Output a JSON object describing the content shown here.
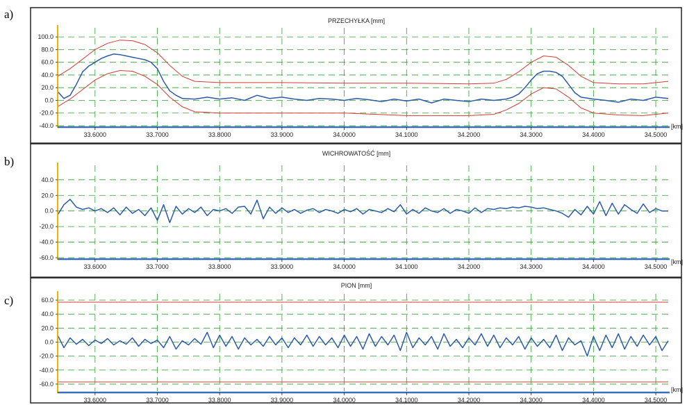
{
  "chart_data": [
    {
      "id": "a",
      "type": "line",
      "letter": "a)",
      "title": "PRZECHYŁKA [mm]",
      "xlabel": "[km]",
      "ylim": [
        -40,
        110
      ],
      "xlim": [
        33.54,
        34.52
      ],
      "y_ticks": [
        100,
        80,
        60,
        40,
        20,
        0,
        -20,
        -40
      ],
      "y_tick_labels": [
        "100.0",
        "80.0",
        "60.0",
        "40.0",
        "20.0",
        "0.0",
        "-20.0",
        "-40.0"
      ],
      "x_ticks": [
        33.6,
        33.7,
        33.8,
        33.9,
        34.0,
        34.1,
        34.2,
        34.3,
        34.4,
        34.5
      ],
      "x_tick_labels": [
        "33.6000",
        "33.7000",
        "33.8000",
        "33.9000",
        "34.0000",
        "34.1000",
        "34.2000",
        "34.3000",
        "34.4000",
        "34.5000"
      ],
      "grid": true,
      "colors": {
        "signal": "#2b5aa8",
        "limit": "#d23a32",
        "grid": "#2aa02a",
        "axis": "#e8b600",
        "baseline": "#3b6fb5"
      },
      "series": [
        {
          "role": "signal",
          "x": [
            33.54,
            33.55,
            33.56,
            33.57,
            33.58,
            33.59,
            33.6,
            33.61,
            33.62,
            33.63,
            33.64,
            33.65,
            33.66,
            33.67,
            33.68,
            33.69,
            33.7,
            33.71,
            33.72,
            33.73,
            33.74,
            33.76,
            33.78,
            33.8,
            33.82,
            33.84,
            33.86,
            33.88,
            33.9,
            33.92,
            33.94,
            33.96,
            33.98,
            34.0,
            34.02,
            34.04,
            34.06,
            34.08,
            34.1,
            34.12,
            34.14,
            34.16,
            34.18,
            34.2,
            34.22,
            34.24,
            34.26,
            34.27,
            34.28,
            34.29,
            34.3,
            34.31,
            34.32,
            34.33,
            34.34,
            34.35,
            34.36,
            34.37,
            34.38,
            34.4,
            34.42,
            34.44,
            34.46,
            34.48,
            34.5,
            34.52
          ],
          "y": [
            14,
            3,
            8,
            25,
            45,
            54,
            60,
            66,
            70,
            73,
            72,
            70,
            68,
            66,
            64,
            60,
            50,
            30,
            15,
            8,
            3,
            2,
            5,
            2,
            4,
            0,
            8,
            3,
            5,
            2,
            0,
            3,
            2,
            0,
            3,
            1,
            -2,
            2,
            -1,
            2,
            -4,
            2,
            0,
            -2,
            2,
            0,
            2,
            5,
            10,
            20,
            32,
            42,
            46,
            46,
            44,
            38,
            25,
            12,
            5,
            2,
            0,
            -3,
            2,
            0,
            5,
            3
          ]
        },
        {
          "role": "upper-limit",
          "x": [
            33.54,
            33.56,
            33.58,
            33.6,
            33.62,
            33.64,
            33.66,
            33.68,
            33.7,
            33.72,
            33.74,
            33.76,
            33.8,
            33.9,
            34.0,
            34.1,
            34.2,
            34.24,
            34.26,
            34.28,
            34.3,
            34.32,
            34.34,
            34.36,
            34.38,
            34.4,
            34.44,
            34.48,
            34.52
          ],
          "y": [
            38,
            50,
            65,
            80,
            90,
            95,
            94,
            88,
            75,
            55,
            38,
            30,
            28,
            28,
            27,
            27,
            26,
            27,
            33,
            45,
            60,
            70,
            68,
            55,
            38,
            28,
            26,
            26,
            30
          ]
        },
        {
          "role": "lower-limit",
          "x": [
            33.54,
            33.56,
            33.58,
            33.6,
            33.62,
            33.64,
            33.66,
            33.68,
            33.7,
            33.72,
            33.74,
            33.76,
            33.8,
            33.9,
            34.0,
            34.1,
            34.2,
            34.24,
            34.26,
            34.28,
            34.3,
            34.32,
            34.34,
            34.36,
            34.38,
            34.4,
            34.44,
            34.48,
            34.52
          ],
          "y": [
            -10,
            2,
            17,
            32,
            42,
            47,
            46,
            38,
            25,
            5,
            -10,
            -18,
            -20,
            -20,
            -20,
            -24,
            -24,
            -22,
            -15,
            -5,
            10,
            20,
            18,
            5,
            -12,
            -20,
            -23,
            -24,
            -20
          ]
        }
      ]
    },
    {
      "id": "b",
      "type": "line",
      "letter": "b)",
      "title": "WICHROWATOŚĆ [mm]",
      "xlabel": "[km]",
      "ylim": [
        -60,
        55
      ],
      "xlim": [
        33.54,
        34.52
      ],
      "y_ticks": [
        40,
        20,
        0,
        -20,
        -40,
        -60
      ],
      "y_tick_labels": [
        "40.0",
        "20.0",
        "0.0",
        "-20.0",
        "-40.0",
        "-60.0"
      ],
      "x_ticks": [
        33.6,
        33.7,
        33.8,
        33.9,
        34.0,
        34.1,
        34.2,
        34.3,
        34.4,
        34.5
      ],
      "x_tick_labels": [
        "33.6000",
        "33.7000",
        "33.8000",
        "33.9000",
        "34.0000",
        "34.1000",
        "34.2000",
        "34.3000",
        "34.4000",
        "34.5000"
      ],
      "grid": true,
      "colors": {
        "signal": "#2b5aa8",
        "limit": "#d23a32",
        "grid": "#2aa02a",
        "axis": "#e8b600",
        "baseline": "#3b6fb5"
      },
      "series": [
        {
          "role": "signal",
          "x": [
            33.54,
            33.55,
            33.56,
            33.57,
            33.58,
            33.59,
            33.6,
            33.61,
            33.62,
            33.63,
            33.64,
            33.65,
            33.66,
            33.67,
            33.68,
            33.69,
            33.7,
            33.71,
            33.72,
            33.73,
            33.74,
            33.75,
            33.76,
            33.77,
            33.78,
            33.79,
            33.8,
            33.81,
            33.82,
            33.83,
            33.84,
            33.85,
            33.86,
            33.87,
            33.88,
            33.89,
            33.9,
            33.91,
            33.92,
            33.93,
            33.94,
            33.95,
            33.96,
            33.97,
            33.98,
            33.99,
            34.0,
            34.01,
            34.02,
            34.03,
            34.04,
            34.05,
            34.06,
            34.07,
            34.08,
            34.09,
            34.1,
            34.11,
            34.12,
            34.13,
            34.14,
            34.15,
            34.16,
            34.17,
            34.18,
            34.19,
            34.2,
            34.21,
            34.22,
            34.23,
            34.24,
            34.25,
            34.26,
            34.27,
            34.28,
            34.29,
            34.3,
            34.31,
            34.32,
            34.33,
            34.34,
            34.35,
            34.36,
            34.37,
            34.38,
            34.39,
            34.4,
            34.41,
            34.42,
            34.43,
            34.44,
            34.45,
            34.46,
            34.47,
            34.48,
            34.49,
            34.5,
            34.51,
            34.52
          ],
          "y": [
            -5,
            8,
            15,
            5,
            2,
            4,
            0,
            3,
            -2,
            4,
            -5,
            5,
            -3,
            2,
            -6,
            4,
            -12,
            8,
            -15,
            6,
            -4,
            3,
            -2,
            5,
            -6,
            2,
            0,
            3,
            -3,
            5,
            6,
            -4,
            14,
            -10,
            5,
            -3,
            4,
            -2,
            2,
            -3,
            1,
            3,
            -2,
            2,
            0,
            -3,
            2,
            -1,
            3,
            -4,
            2,
            0,
            -2,
            3,
            -1,
            8,
            -4,
            2,
            -3,
            4,
            0,
            -2,
            3,
            -3,
            2,
            0,
            -3,
            4,
            -2,
            3,
            2,
            4,
            3,
            5,
            4,
            6,
            5,
            3,
            4,
            2,
            0,
            -3,
            -8,
            2,
            -5,
            6,
            -4,
            12,
            -6,
            10,
            -4,
            8,
            2,
            -3,
            9,
            -2,
            3,
            0,
            0
          ]
        }
      ]
    },
    {
      "id": "c",
      "type": "line",
      "letter": "c)",
      "title": "PION [mm]",
      "xlabel": "[km]",
      "ylim": [
        -70,
        65
      ],
      "xlim": [
        33.54,
        34.52
      ],
      "y_ticks": [
        60,
        40,
        20,
        0,
        -20,
        -40,
        -60
      ],
      "y_tick_labels": [
        "60.0",
        "40.0",
        "20.0",
        "0.0",
        "-20.0",
        "-40.0",
        "-60.0"
      ],
      "x_ticks": [
        33.6,
        33.7,
        33.8,
        33.9,
        34.0,
        34.1,
        34.2,
        34.3,
        34.4,
        34.5
      ],
      "x_tick_labels": [
        "33.6000",
        "33.7000",
        "33.8000",
        "33.9000",
        "34.0000",
        "34.1000",
        "34.2000",
        "34.3000",
        "34.4000",
        "34.5000"
      ],
      "grid": true,
      "colors": {
        "signal": "#2b5aa8",
        "limit": "#d23a32",
        "grid": "#2aa02a",
        "axis": "#e8b600",
        "baseline": "#3b6fb5"
      },
      "limit_lines": [
        57,
        -57
      ],
      "series": [
        {
          "role": "signal",
          "x": [
            33.54,
            33.55,
            33.56,
            33.57,
            33.58,
            33.59,
            33.6,
            33.61,
            33.62,
            33.63,
            33.64,
            33.65,
            33.66,
            33.67,
            33.68,
            33.69,
            33.7,
            33.71,
            33.72,
            33.73,
            33.74,
            33.75,
            33.76,
            33.77,
            33.78,
            33.79,
            33.8,
            33.81,
            33.82,
            33.83,
            33.84,
            33.85,
            33.86,
            33.87,
            33.88,
            33.89,
            33.9,
            33.91,
            33.92,
            33.93,
            33.94,
            33.95,
            33.96,
            33.97,
            33.98,
            33.99,
            34.0,
            34.01,
            34.02,
            34.03,
            34.04,
            34.05,
            34.06,
            34.07,
            34.08,
            34.09,
            34.1,
            34.11,
            34.12,
            34.13,
            34.14,
            34.15,
            34.16,
            34.17,
            34.18,
            34.19,
            34.2,
            34.21,
            34.22,
            34.23,
            34.24,
            34.25,
            34.26,
            34.27,
            34.28,
            34.29,
            34.3,
            34.31,
            34.32,
            34.33,
            34.34,
            34.35,
            34.36,
            34.37,
            34.38,
            34.39,
            34.4,
            34.41,
            34.42,
            34.43,
            34.44,
            34.45,
            34.46,
            34.47,
            34.48,
            34.49,
            34.5,
            34.51,
            34.52
          ],
          "y": [
            10,
            -8,
            6,
            -3,
            4,
            -5,
            3,
            -2,
            5,
            -4,
            2,
            -3,
            6,
            -6,
            4,
            -2,
            3,
            -8,
            8,
            -10,
            2,
            -4,
            5,
            -3,
            14,
            -8,
            10,
            -6,
            8,
            -10,
            6,
            -4,
            4,
            -6,
            8,
            -4,
            6,
            -8,
            6,
            -4,
            10,
            -6,
            8,
            -4,
            6,
            -8,
            10,
            -6,
            8,
            -10,
            12,
            -6,
            8,
            -4,
            10,
            -12,
            14,
            -8,
            6,
            -4,
            8,
            -10,
            12,
            -6,
            4,
            -8,
            6,
            -4,
            12,
            -6,
            10,
            -8,
            6,
            -4,
            8,
            -10,
            6,
            -6,
            4,
            -8,
            10,
            -12,
            6,
            -4,
            2,
            -20,
            8,
            -12,
            10,
            -8,
            12,
            -10,
            8,
            -6,
            10,
            -4,
            8,
            -12,
            2
          ]
        }
      ]
    }
  ]
}
